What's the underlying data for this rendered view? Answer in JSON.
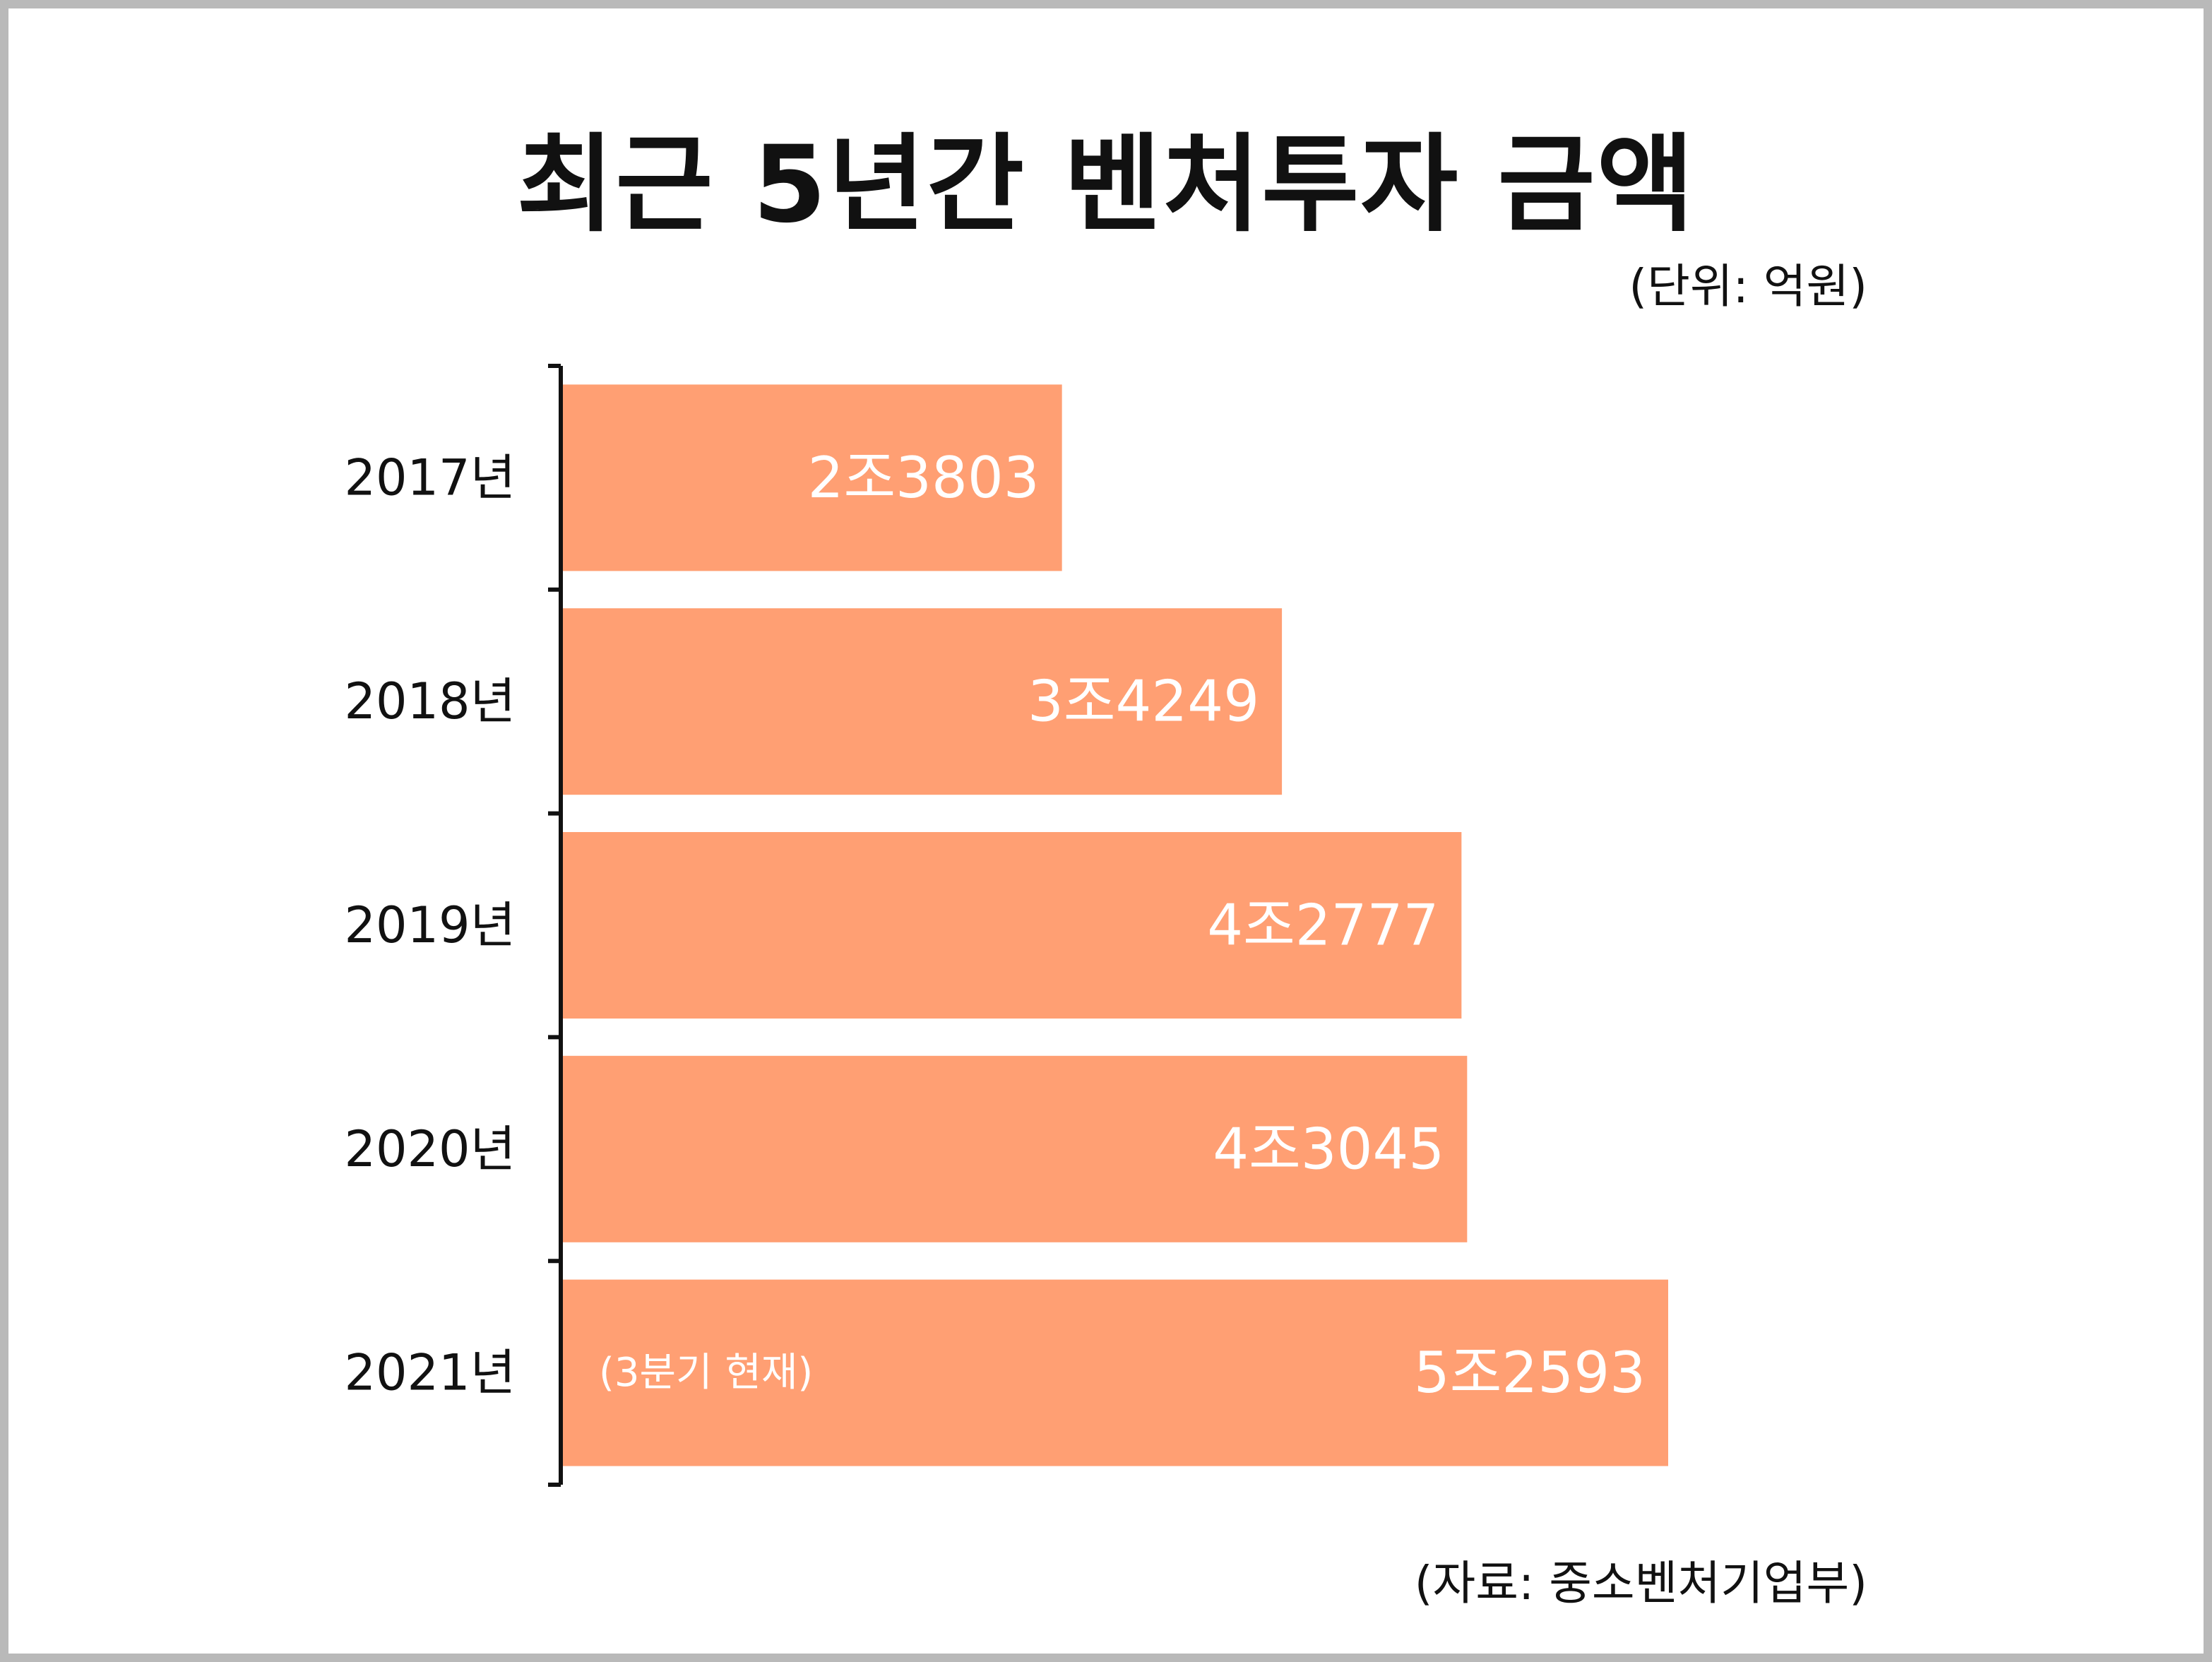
{
  "chart_data": {
    "type": "bar",
    "orientation": "horizontal",
    "title": "최근 5년간 벤처투자 금액",
    "unit": "(단위: 억원)",
    "source": "(자료: 중소벤처기업부)",
    "categories": [
      "2017년",
      "2018년",
      "2019년",
      "2020년",
      "2021년"
    ],
    "values": [
      23803,
      34249,
      42777,
      43045,
      52593
    ],
    "value_labels": [
      "2조3803",
      "3조4249",
      "4조2777",
      "4조3045",
      "5조2593"
    ],
    "notes": [
      "",
      "",
      "",
      "",
      "(3분기 현재)"
    ],
    "xlim": [
      0,
      52593
    ],
    "grid": false,
    "legend": "none",
    "bar_color": "#ff9f73",
    "axis_color": "#111111"
  }
}
